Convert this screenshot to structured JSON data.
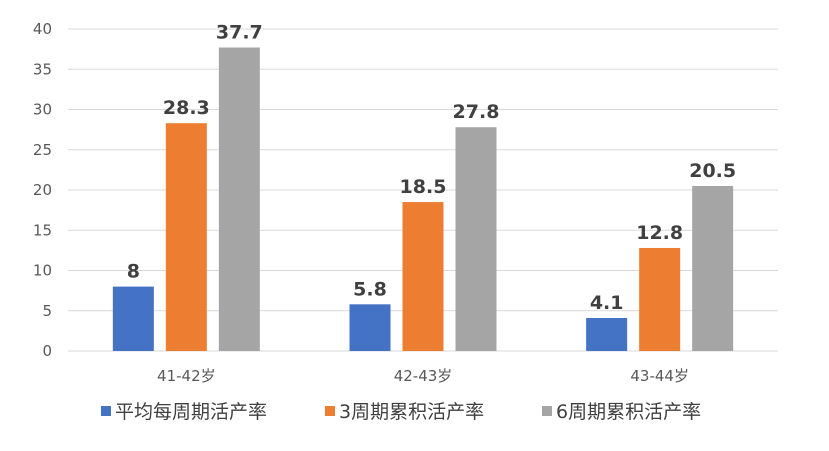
{
  "chart_data": {
    "type": "bar",
    "categories": [
      "41-42岁",
      "42-43岁",
      "43-44岁"
    ],
    "series": [
      {
        "name": "平均每周期活产率",
        "color": "#4472c4",
        "values": [
          8,
          5.8,
          4.1
        ],
        "labels": [
          "8",
          "5.8",
          "4.1"
        ]
      },
      {
        "name": "3周期累积活产率",
        "color": "#ed7d31",
        "values": [
          28.3,
          18.5,
          12.8
        ],
        "labels": [
          "28.3",
          "18.5",
          "12.8"
        ]
      },
      {
        "name": "6周期累积活产率",
        "color": "#a5a5a5",
        "values": [
          37.7,
          27.8,
          20.5
        ],
        "labels": [
          "37.7",
          "27.8",
          "20.5"
        ]
      }
    ],
    "ylim": [
      0,
      40
    ],
    "yticks": [
      "0",
      "5",
      "10",
      "15",
      "20",
      "25",
      "30",
      "35",
      "40"
    ],
    "grid": true,
    "legend_position": "bottom"
  }
}
